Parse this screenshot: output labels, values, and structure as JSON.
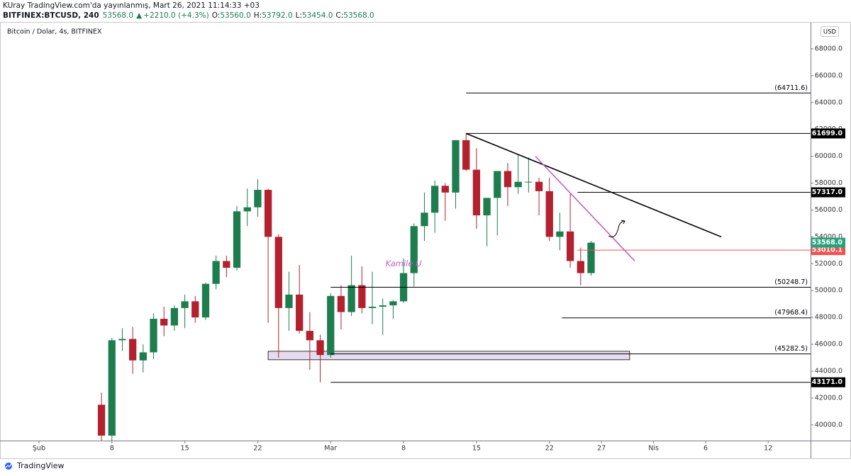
{
  "header": {
    "line1": "KUray TradingView.com'da yayınlanmış, Mart 26, 2021 11:14:33 +03",
    "symbol": "BITFINEX:BTCUSD, 240",
    "price": "53568.0",
    "direction": "▲",
    "change": "+2210.0 (+4.3%)",
    "ohlc": [
      {
        "key": "O:",
        "value": "53560.0"
      },
      {
        "key": "H:",
        "value": "53792.0"
      },
      {
        "key": "L:",
        "value": "53454.0"
      },
      {
        "key": "C:",
        "value": "53568.0"
      }
    ]
  },
  "footer": "TradingView",
  "chart_data": {
    "type": "candlestick",
    "title": "Bitcoin / Dolar, 4s, BITFINEX",
    "currency": "USD",
    "xlim": [
      -3.74,
      74.07
    ],
    "xticks": [
      {
        "value": 0,
        "label": "Şub"
      },
      {
        "value": 7,
        "label": "8"
      },
      {
        "value": 14,
        "label": "15"
      },
      {
        "value": 21,
        "label": "22"
      },
      {
        "value": 28,
        "label": "Mar"
      },
      {
        "value": 35,
        "label": "8"
      },
      {
        "value": 42,
        "label": "15"
      },
      {
        "value": 49,
        "label": "22"
      },
      {
        "value": 54,
        "label": "27"
      },
      {
        "value": 59,
        "label": "Nis"
      },
      {
        "value": 64,
        "label": "6"
      },
      {
        "value": 70,
        "label": "12"
      }
    ],
    "ylim": [
      38830,
      69790
    ],
    "yticks": [
      {
        "value": 40000,
        "label": "40000.0"
      },
      {
        "value": 42000,
        "label": "42000.0"
      },
      {
        "value": 44000,
        "label": "44000.0"
      },
      {
        "value": 46000,
        "label": "46000.0"
      },
      {
        "value": 48000,
        "label": "48000.0"
      },
      {
        "value": 50000,
        "label": "50000.0"
      },
      {
        "value": 52000,
        "label": "52000.0"
      },
      {
        "value": 54000,
        "label": "54000.0"
      },
      {
        "value": 56000,
        "label": "56000.0"
      },
      {
        "value": 58000,
        "label": "58000.0"
      },
      {
        "value": 60000,
        "label": "60000.0"
      },
      {
        "value": 62000,
        "label": "62000.0"
      },
      {
        "value": 64000,
        "label": "64000.0"
      },
      {
        "value": 66000,
        "label": "66000.0"
      },
      {
        "value": 68000,
        "label": "68000.0"
      }
    ],
    "up_color": "#1e7d4f",
    "down_color": "#b3202e",
    "x": [
      6,
      7,
      8,
      9,
      10,
      11,
      12,
      13,
      14,
      15,
      16,
      17,
      18,
      19,
      20,
      21,
      22,
      23,
      24,
      25,
      26,
      27,
      28,
      29,
      30,
      31,
      32,
      33,
      34,
      35,
      36,
      37,
      38,
      39,
      40,
      41,
      42,
      43,
      44,
      45,
      46,
      47,
      48,
      49,
      50,
      51,
      52,
      53
    ],
    "open": [
      41500,
      39200,
      46300,
      46400,
      44800,
      45400,
      47900,
      47400,
      48700,
      49200,
      48000,
      50500,
      52200,
      51700,
      55900,
      56200,
      57500,
      54000,
      48700,
      49700,
      47000,
      46300,
      45200,
      49600,
      48400,
      50400,
      48700,
      48800,
      48900,
      49200,
      51300,
      54800,
      55800,
      57800,
      57300,
      61200,
      59000,
      55600,
      56900,
      58900,
      57700,
      58100,
      58100,
      57400,
      54000,
      54400,
      52200,
      51300
    ],
    "high": [
      42400,
      46500,
      47200,
      47300,
      46000,
      48300,
      48800,
      48900,
      49700,
      49600,
      50600,
      52600,
      52600,
      56300,
      57600,
      58300,
      57600,
      54200,
      51400,
      51900,
      48400,
      46700,
      49800,
      50400,
      52600,
      51800,
      51400,
      49400,
      49300,
      52400,
      55000,
      57300,
      58200,
      58000,
      61200,
      61699,
      60600,
      56900,
      58900,
      59500,
      60100,
      59900,
      58400,
      58400,
      55800,
      57200,
      53200,
      53700
    ],
    "low": [
      38700,
      38500,
      45500,
      43800,
      43900,
      44900,
      46600,
      47000,
      47200,
      47600,
      47800,
      50100,
      51000,
      51500,
      54800,
      55500,
      47600,
      45000,
      47000,
      46800,
      44100,
      43171,
      45000,
      47100,
      48100,
      48300,
      47500,
      46700,
      47900,
      49100,
      50300,
      53700,
      54300,
      55200,
      56100,
      58900,
      54600,
      53300,
      54100,
      56300,
      57200,
      57300,
      55600,
      53700,
      53000,
      51700,
      50400,
      51100
    ],
    "close": [
      39200,
      46300,
      46400,
      44800,
      45400,
      47900,
      47400,
      48700,
      49200,
      48000,
      50500,
      52200,
      51700,
      55900,
      56200,
      57500,
      54000,
      48700,
      49700,
      47000,
      46300,
      45200,
      49600,
      48400,
      50400,
      48700,
      48800,
      48900,
      49200,
      51300,
      54800,
      55800,
      57800,
      57300,
      61200,
      59000,
      55600,
      56900,
      58900,
      57700,
      58100,
      58100,
      57400,
      54000,
      54400,
      52200,
      51300,
      53568
    ],
    "last_price": {
      "value": 53568,
      "label": "53568.0",
      "color": "#26a17b"
    },
    "levels": [
      {
        "value": 64711.6,
        "label": "(64711.6)",
        "from": 41,
        "label_style": "plot",
        "color": "#000000"
      },
      {
        "value": 61699,
        "label": "61699.0",
        "from": 41,
        "label_style": "axis",
        "color": "#000000"
      },
      {
        "value": 57317,
        "label": "57317.0",
        "from": 51.7,
        "label_style": "axis",
        "color": "#000000"
      },
      {
        "value": 53010.1,
        "label": "53010.1",
        "from": 51.7,
        "label_style": "axis",
        "color": "#ef5350"
      },
      {
        "value": 50248.7,
        "label": "(50248.7)",
        "from": 28,
        "label_style": "plot",
        "color": "#000000"
      },
      {
        "value": 47968.4,
        "label": "(47968.4)",
        "from": 50.2,
        "label_style": "plot",
        "color": "#000000"
      },
      {
        "value": 45282.5,
        "label": "(45282.5)",
        "from": 28,
        "label_style": "plot",
        "color": "#000000"
      },
      {
        "value": 43171,
        "label": "43171.0",
        "from": 28,
        "label_style": "axis",
        "color": "#000000"
      }
    ],
    "trendlines": [
      {
        "x": [
          41,
          65.5
        ],
        "y": [
          61700,
          54000
        ],
        "color": "#000000"
      },
      {
        "x": [
          47.65,
          57.2
        ],
        "y": [
          60000,
          52200
        ],
        "color": "#c45ccf"
      }
    ],
    "zone": {
      "x": [
        22,
        56.7
      ],
      "y": [
        45480,
        44850
      ],
      "color": "#e6dcf0"
    },
    "annotation": {
      "text": "Kamile U",
      "x": 35,
      "y": 52000,
      "color": "#c45ccf"
    }
  }
}
